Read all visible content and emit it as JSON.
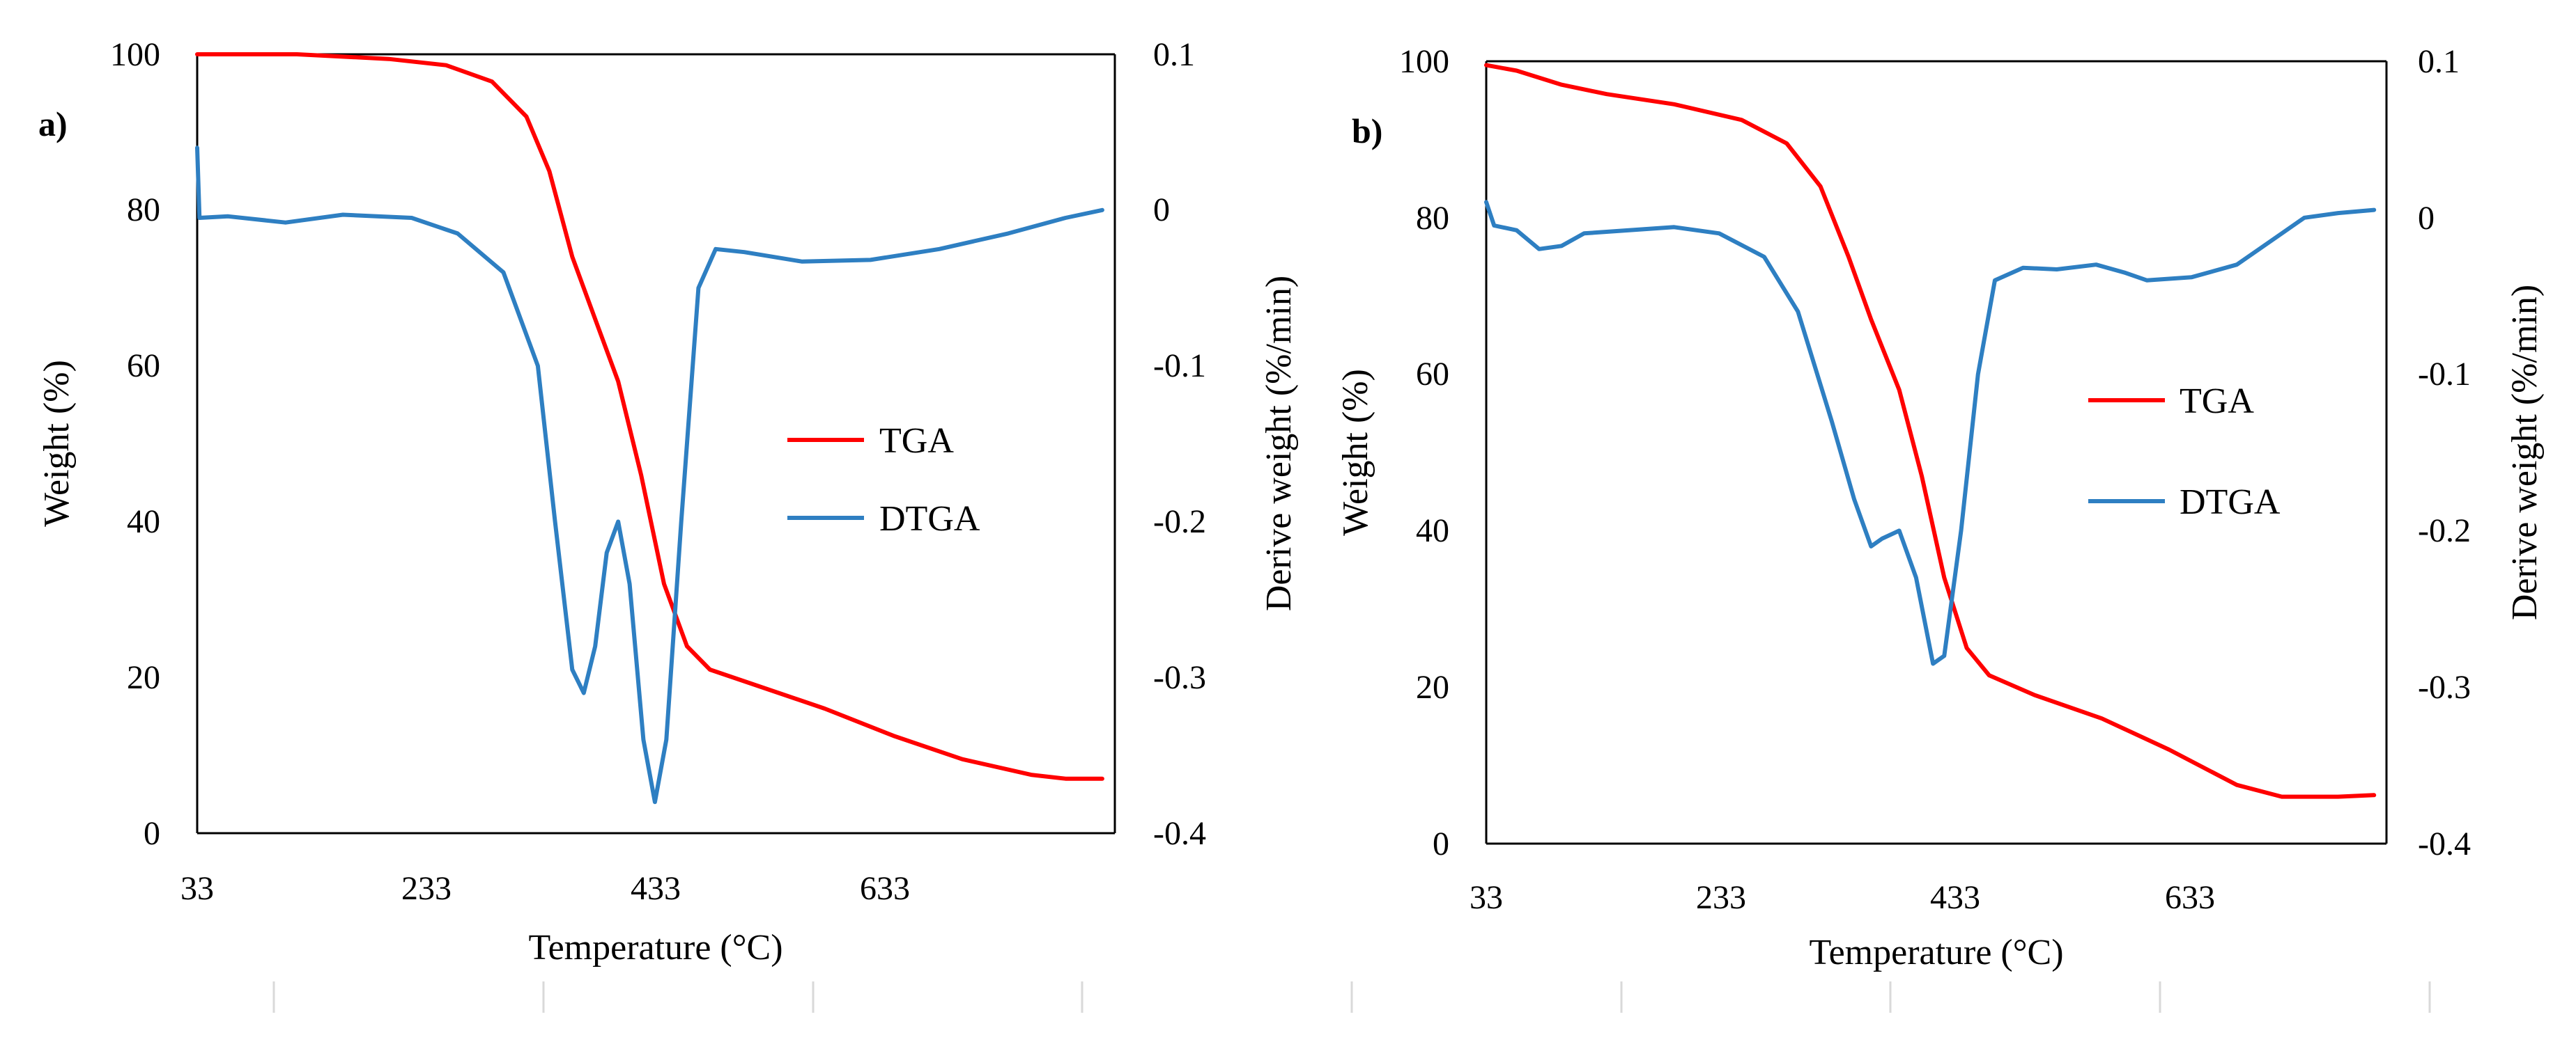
{
  "chart_data": [
    {
      "type": "line",
      "panel_label": "a)",
      "xlabel": "Temperature (°C)",
      "ylabel": "Weight (%)",
      "y2label": "Derive weight (%/min)",
      "xlim": [
        33,
        833
      ],
      "ylim": [
        0,
        100
      ],
      "y2lim": [
        -0.4,
        0.1
      ],
      "x_ticks": [
        "33",
        "233",
        "433",
        "633"
      ],
      "x_tick_values": [
        33,
        233,
        433,
        633
      ],
      "y_ticks": [
        "0",
        "20",
        "40",
        "60",
        "80",
        "100"
      ],
      "y_tick_values": [
        0,
        20,
        40,
        60,
        80,
        100
      ],
      "y2_ticks": [
        "-0.4",
        "-0.3",
        "-0.2",
        "-0.1",
        "0",
        "0.1"
      ],
      "y2_tick_values": [
        -0.4,
        -0.3,
        -0.2,
        -0.1,
        0,
        0.1
      ],
      "legend_position": "center-right",
      "series": [
        {
          "name": "TGA",
          "axis": "left",
          "color": "#ff0000",
          "points": [
            [
              33,
              100
            ],
            [
              120,
              100
            ],
            [
              200,
              99.4
            ],
            [
              250,
              98.6
            ],
            [
              290,
              96.5
            ],
            [
              320,
              92
            ],
            [
              340,
              85
            ],
            [
              360,
              74
            ],
            [
              380,
              66
            ],
            [
              400,
              58
            ],
            [
              420,
              46
            ],
            [
              440,
              32
            ],
            [
              460,
              24
            ],
            [
              480,
              21
            ],
            [
              520,
              19
            ],
            [
              580,
              16
            ],
            [
              640,
              12.5
            ],
            [
              700,
              9.5
            ],
            [
              760,
              7.5
            ],
            [
              790,
              7
            ],
            [
              822,
              7
            ]
          ]
        },
        {
          "name": "DTGA",
          "axis": "right",
          "color": "#2e7fc2",
          "points": [
            [
              33,
              0.04
            ],
            [
              35,
              -0.005
            ],
            [
              60,
              -0.004
            ],
            [
              110,
              -0.008
            ],
            [
              160,
              -0.003
            ],
            [
              220,
              -0.005
            ],
            [
              260,
              -0.015
            ],
            [
              300,
              -0.04
            ],
            [
              330,
              -0.1
            ],
            [
              345,
              -0.2
            ],
            [
              360,
              -0.295
            ],
            [
              370,
              -0.31
            ],
            [
              380,
              -0.28
            ],
            [
              390,
              -0.22
            ],
            [
              400,
              -0.2
            ],
            [
              410,
              -0.24
            ],
            [
              422,
              -0.34
            ],
            [
              432,
              -0.38
            ],
            [
              442,
              -0.34
            ],
            [
              455,
              -0.2
            ],
            [
              470,
              -0.05
            ],
            [
              485,
              -0.025
            ],
            [
              510,
              -0.027
            ],
            [
              560,
              -0.033
            ],
            [
              620,
              -0.032
            ],
            [
              680,
              -0.025
            ],
            [
              740,
              -0.015
            ],
            [
              790,
              -0.005
            ],
            [
              822,
              0
            ]
          ]
        }
      ]
    },
    {
      "type": "line",
      "panel_label": "b)",
      "xlabel": "Temperature (°C)",
      "ylabel": "Weight (%)",
      "y2label": "Derive weight (%/min)",
      "xlim": [
        33,
        833
      ],
      "ylim": [
        0,
        100
      ],
      "y2lim": [
        -0.4,
        0.1
      ],
      "x_ticks": [
        "33",
        "233",
        "433",
        "633"
      ],
      "x_tick_values": [
        33,
        233,
        433,
        633
      ],
      "y_ticks": [
        "0",
        "20",
        "40",
        "60",
        "80",
        "100"
      ],
      "y_tick_values": [
        0,
        20,
        40,
        60,
        80,
        100
      ],
      "y2_ticks": [
        "-0.4",
        "-0.3",
        "-0.2",
        "-0.1",
        "0",
        "0.1"
      ],
      "y2_tick_values": [
        -0.4,
        -0.3,
        -0.2,
        -0.1,
        0,
        0.1
      ],
      "legend_position": "center-right",
      "series": [
        {
          "name": "TGA",
          "axis": "left",
          "color": "#ff0000",
          "points": [
            [
              33,
              99.5
            ],
            [
              60,
              98.8
            ],
            [
              100,
              97
            ],
            [
              140,
              95.8
            ],
            [
              200,
              94.5
            ],
            [
              260,
              92.5
            ],
            [
              300,
              89.5
            ],
            [
              330,
              84
            ],
            [
              355,
              75
            ],
            [
              375,
              67
            ],
            [
              400,
              58
            ],
            [
              420,
              47
            ],
            [
              440,
              34
            ],
            [
              460,
              25
            ],
            [
              480,
              21.5
            ],
            [
              520,
              19
            ],
            [
              580,
              16
            ],
            [
              640,
              12
            ],
            [
              700,
              7.5
            ],
            [
              740,
              6
            ],
            [
              790,
              6
            ],
            [
              822,
              6.2
            ]
          ]
        },
        {
          "name": "DTGA",
          "axis": "right",
          "color": "#2e7fc2",
          "points": [
            [
              33,
              0.01
            ],
            [
              40,
              -0.005
            ],
            [
              60,
              -0.008
            ],
            [
              80,
              -0.02
            ],
            [
              100,
              -0.018
            ],
            [
              120,
              -0.01
            ],
            [
              160,
              -0.008
            ],
            [
              200,
              -0.006
            ],
            [
              240,
              -0.01
            ],
            [
              280,
              -0.025
            ],
            [
              310,
              -0.06
            ],
            [
              340,
              -0.13
            ],
            [
              360,
              -0.18
            ],
            [
              375,
              -0.21
            ],
            [
              385,
              -0.205
            ],
            [
              400,
              -0.2
            ],
            [
              415,
              -0.23
            ],
            [
              430,
              -0.285
            ],
            [
              440,
              -0.28
            ],
            [
              455,
              -0.2
            ],
            [
              470,
              -0.1
            ],
            [
              485,
              -0.04
            ],
            [
              510,
              -0.032
            ],
            [
              540,
              -0.033
            ],
            [
              575,
              -0.03
            ],
            [
              600,
              -0.035
            ],
            [
              620,
              -0.04
            ],
            [
              660,
              -0.038
            ],
            [
              700,
              -0.03
            ],
            [
              740,
              -0.01
            ],
            [
              760,
              0
            ],
            [
              790,
              0.003
            ],
            [
              822,
              0.005
            ]
          ]
        }
      ]
    }
  ]
}
